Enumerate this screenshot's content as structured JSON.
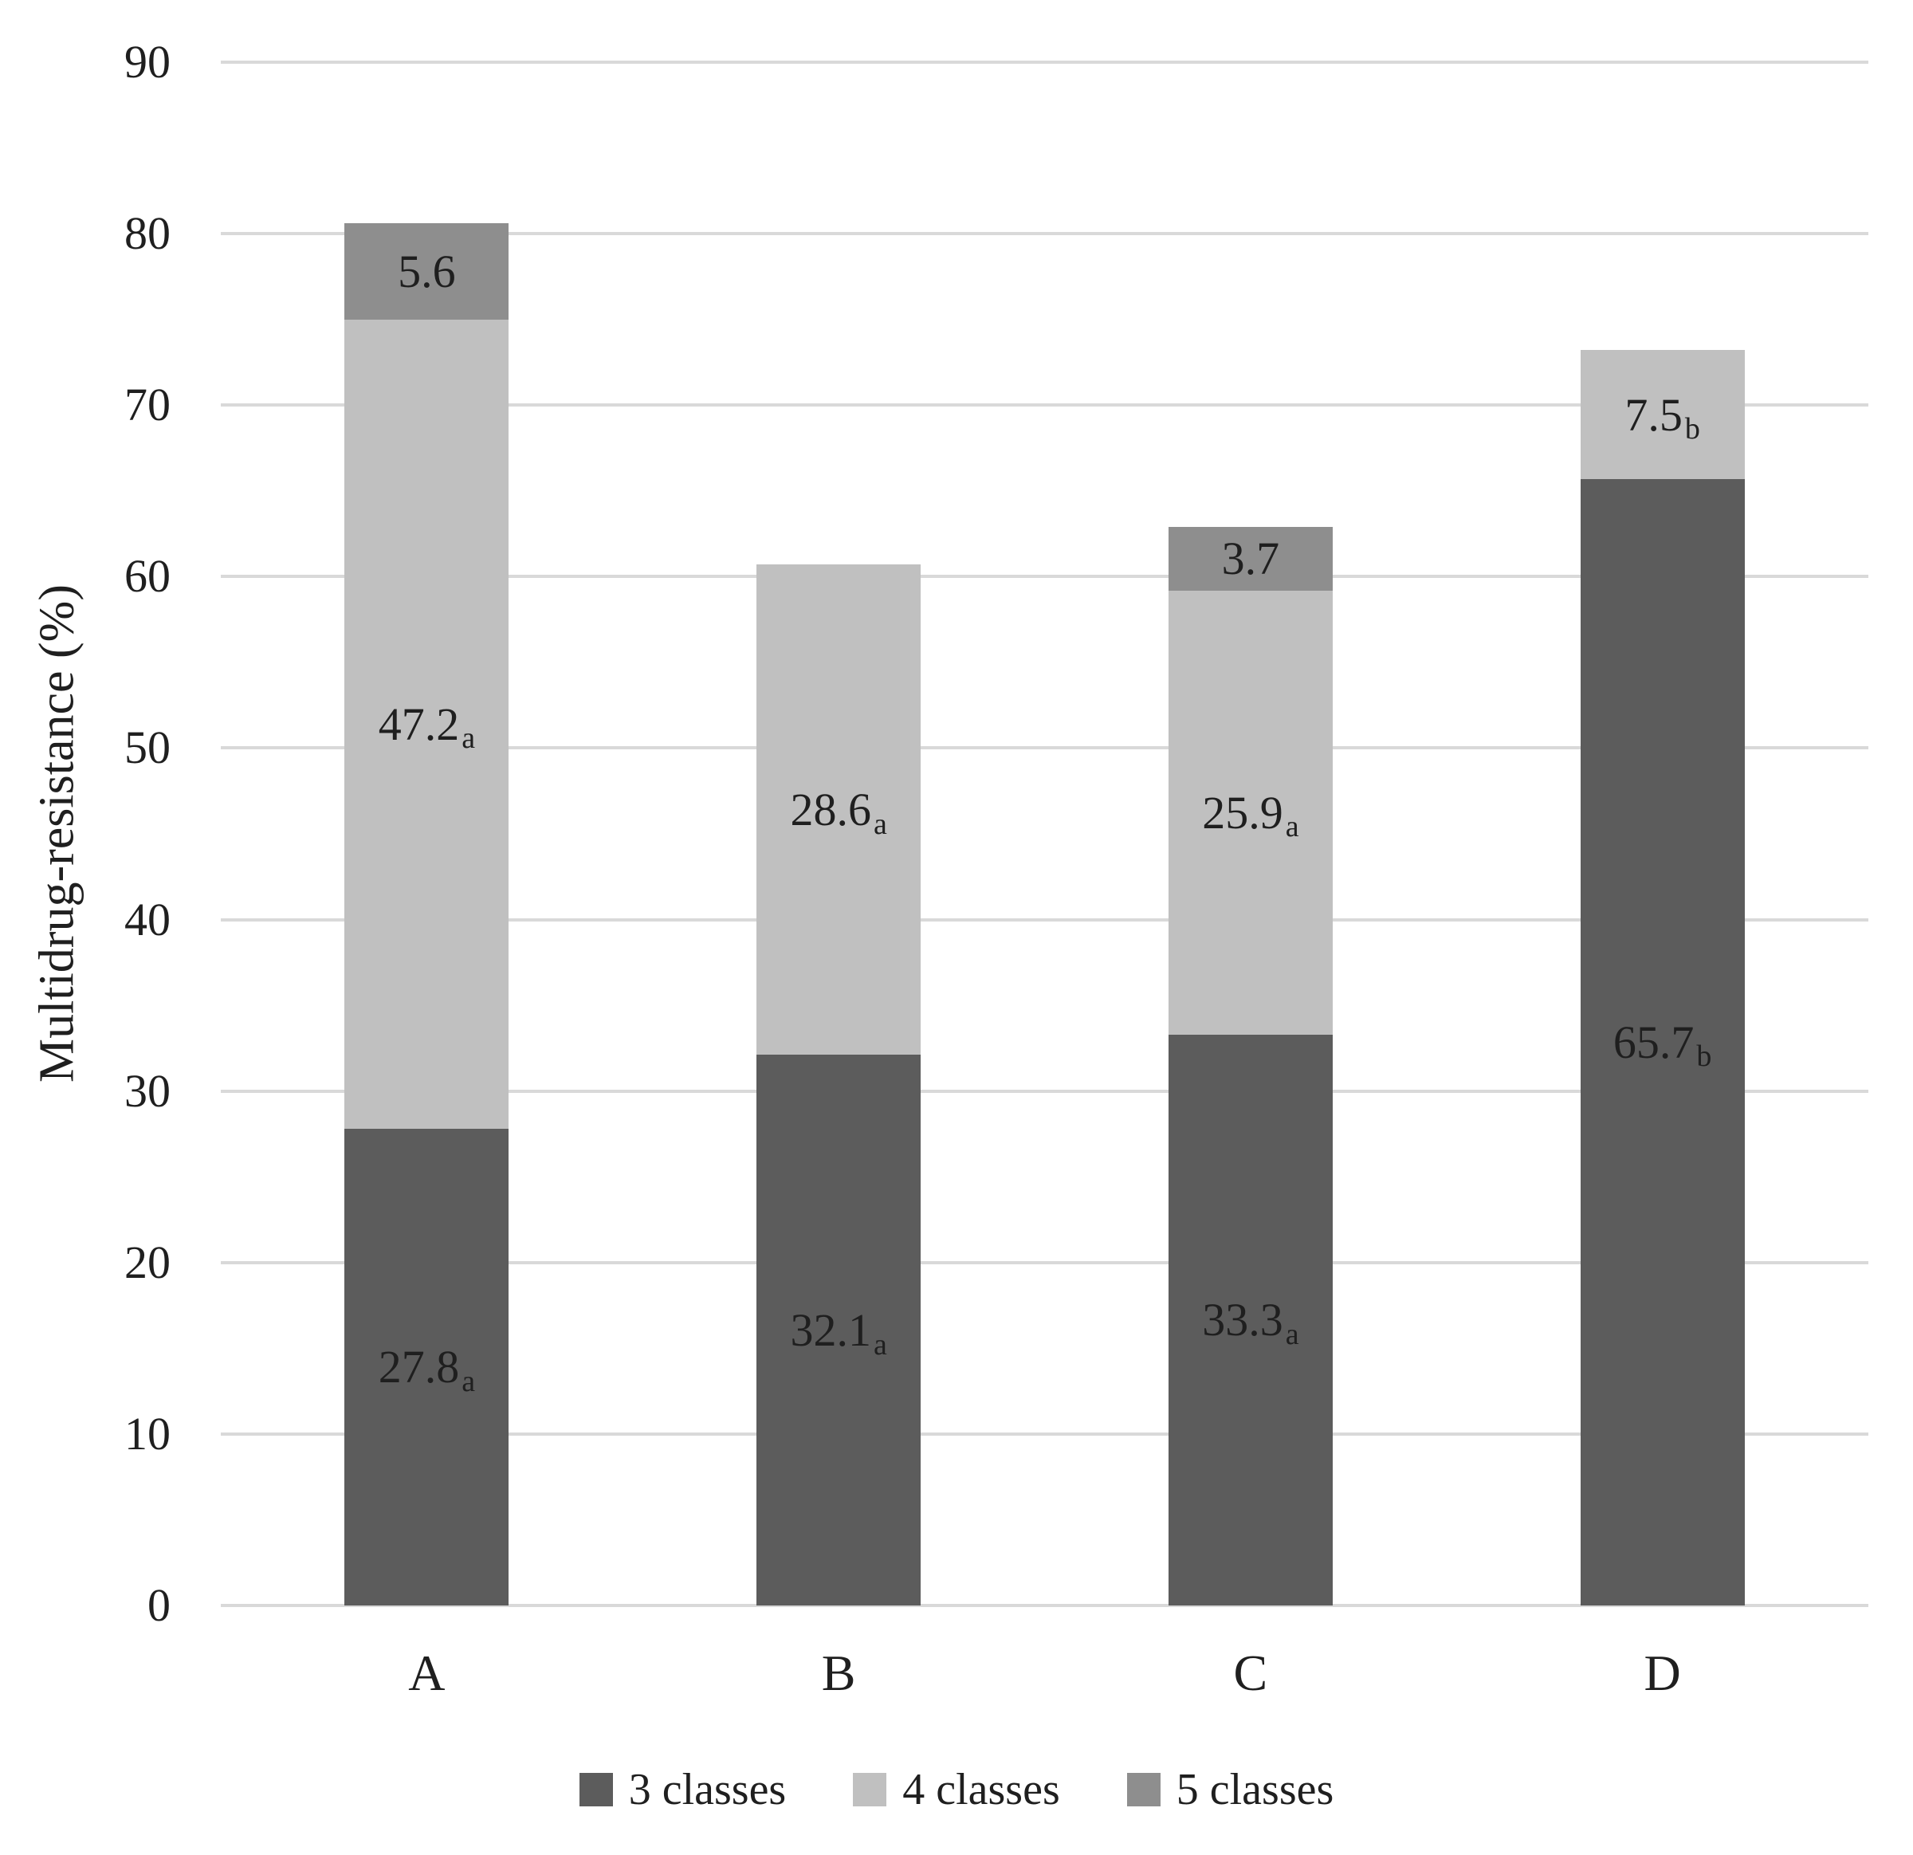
{
  "figure": {
    "background": "#ffffff",
    "text_color": "#1f1f1f",
    "gridline_color": "#d9d9d9"
  },
  "chart_data": {
    "type": "bar",
    "stacked": true,
    "title": "",
    "xlabel": "",
    "ylabel": "Multidrug-resistance (%)",
    "ylim": [
      0,
      90
    ],
    "yticks": [
      0,
      10,
      20,
      30,
      40,
      50,
      60,
      70,
      80,
      90
    ],
    "grid": "horizontal",
    "legend_position": "bottom",
    "categories": [
      "A",
      "B",
      "C",
      "D"
    ],
    "series": [
      {
        "name": "3 classes",
        "color": "#5c5c5c",
        "values": [
          27.8,
          32.1,
          33.3,
          65.7
        ],
        "labels": [
          "27.8",
          "32.1",
          "33.3",
          "65.7"
        ],
        "label_subscripts": [
          "a",
          "a",
          "a",
          "b"
        ]
      },
      {
        "name": "4 classes",
        "color": "#c0c0c0",
        "values": [
          47.2,
          28.6,
          25.9,
          7.5
        ],
        "labels": [
          "47.2",
          "28.6",
          "25.9",
          "7.5"
        ],
        "label_subscripts": [
          "a",
          "a",
          "a",
          "b"
        ]
      },
      {
        "name": "5 classes",
        "color": "#8e8e8e",
        "values": [
          5.6,
          0,
          3.7,
          0
        ],
        "labels": [
          "5.6",
          "",
          "3.7",
          ""
        ],
        "label_subscripts": [
          "",
          "",
          "",
          ""
        ]
      }
    ]
  }
}
